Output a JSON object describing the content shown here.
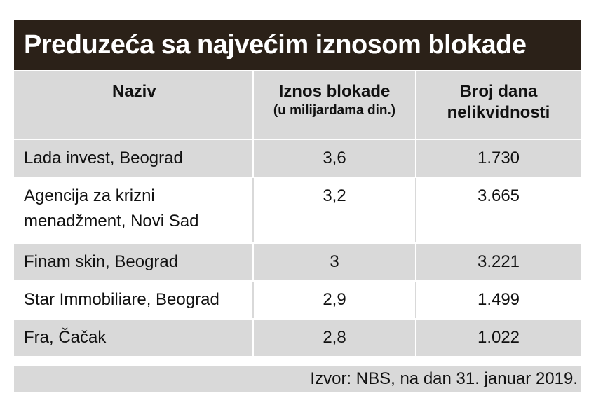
{
  "chart_data": {
    "type": "table",
    "title": "Preduzeća sa najvećim iznosom blokade",
    "columns": [
      {
        "label": "Naziv",
        "sublabel": ""
      },
      {
        "label": "Iznos blokade",
        "sublabel": "(u milijardama din.)"
      },
      {
        "label": "Broj dana",
        "sublabel": "nelikvidnosti"
      }
    ],
    "rows": [
      {
        "name_lines": [
          "Lada invest, Beograd"
        ],
        "amount": "3,6",
        "days": "1.730"
      },
      {
        "name_lines": [
          "Agencija za krizni",
          "menadžment, Novi Sad"
        ],
        "amount": "3,2",
        "days": "3.665"
      },
      {
        "name_lines": [
          "Finam skin, Beograd"
        ],
        "amount": "3",
        "days": "3.221"
      },
      {
        "name_lines": [
          "Star Immobiliare, Beograd"
        ],
        "amount": "2,9",
        "days": "1.499"
      },
      {
        "name_lines": [
          "Fra, Čačak"
        ],
        "amount": "2,8",
        "days": "1.022"
      }
    ],
    "source": "Izvor: NBS, na dan 31. januar 2019."
  },
  "colors": {
    "title_bg": "#2b2118",
    "row_grey": "#d9d9d9",
    "row_white": "#ffffff"
  }
}
